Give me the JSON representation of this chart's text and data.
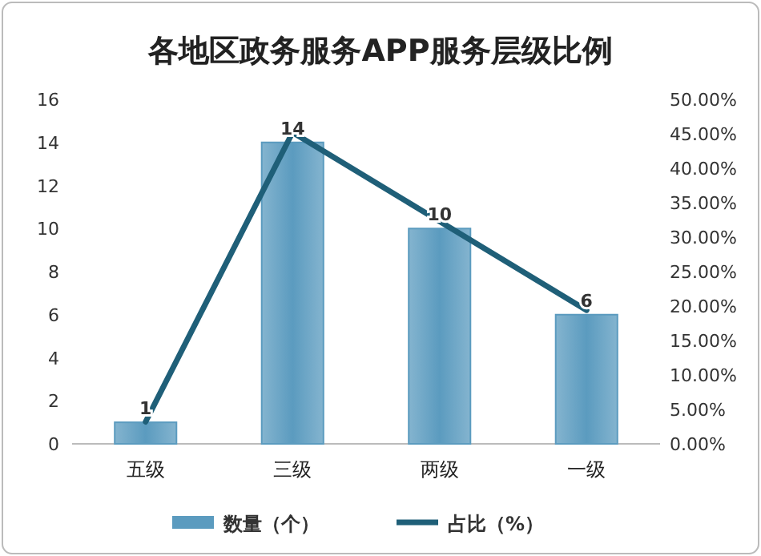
{
  "chart_data": {
    "type": "bar",
    "title": "各地区政务服务APP服务层级比例",
    "categories": [
      "五级",
      "三级",
      "两级",
      "一级"
    ],
    "series": [
      {
        "name": "数量（个）",
        "color": "#5b9bbf",
        "values": [
          1,
          14,
          10,
          6
        ],
        "value_labels": [
          "1",
          "14",
          "10",
          "6"
        ]
      },
      {
        "name": "占比（%）",
        "type": "line",
        "axis": "y2",
        "color": "#1f5f78",
        "values": [
          3.2,
          45.2,
          32.3,
          19.4
        ]
      }
    ],
    "ylim": [
      0,
      16
    ],
    "yticks": [
      0,
      2,
      4,
      6,
      8,
      10,
      12,
      14,
      16
    ],
    "y2lim": [
      0,
      50
    ],
    "y2ticks": [
      {
        "value": 0,
        "label": "0.00%"
      },
      {
        "value": 5,
        "label": "5.00%"
      },
      {
        "value": 10,
        "label": "10.00%"
      },
      {
        "value": 15,
        "label": "15.00%"
      },
      {
        "value": 20,
        "label": "20.00%"
      },
      {
        "value": 25,
        "label": "25.00%"
      },
      {
        "value": 30,
        "label": "30.00%"
      },
      {
        "value": 35,
        "label": "35.00%"
      },
      {
        "value": 40,
        "label": "40.00%"
      },
      {
        "value": 45,
        "label": "45.00%"
      },
      {
        "value": 50,
        "label": "50.00%"
      }
    ],
    "grid": false,
    "legend": "bottom"
  }
}
